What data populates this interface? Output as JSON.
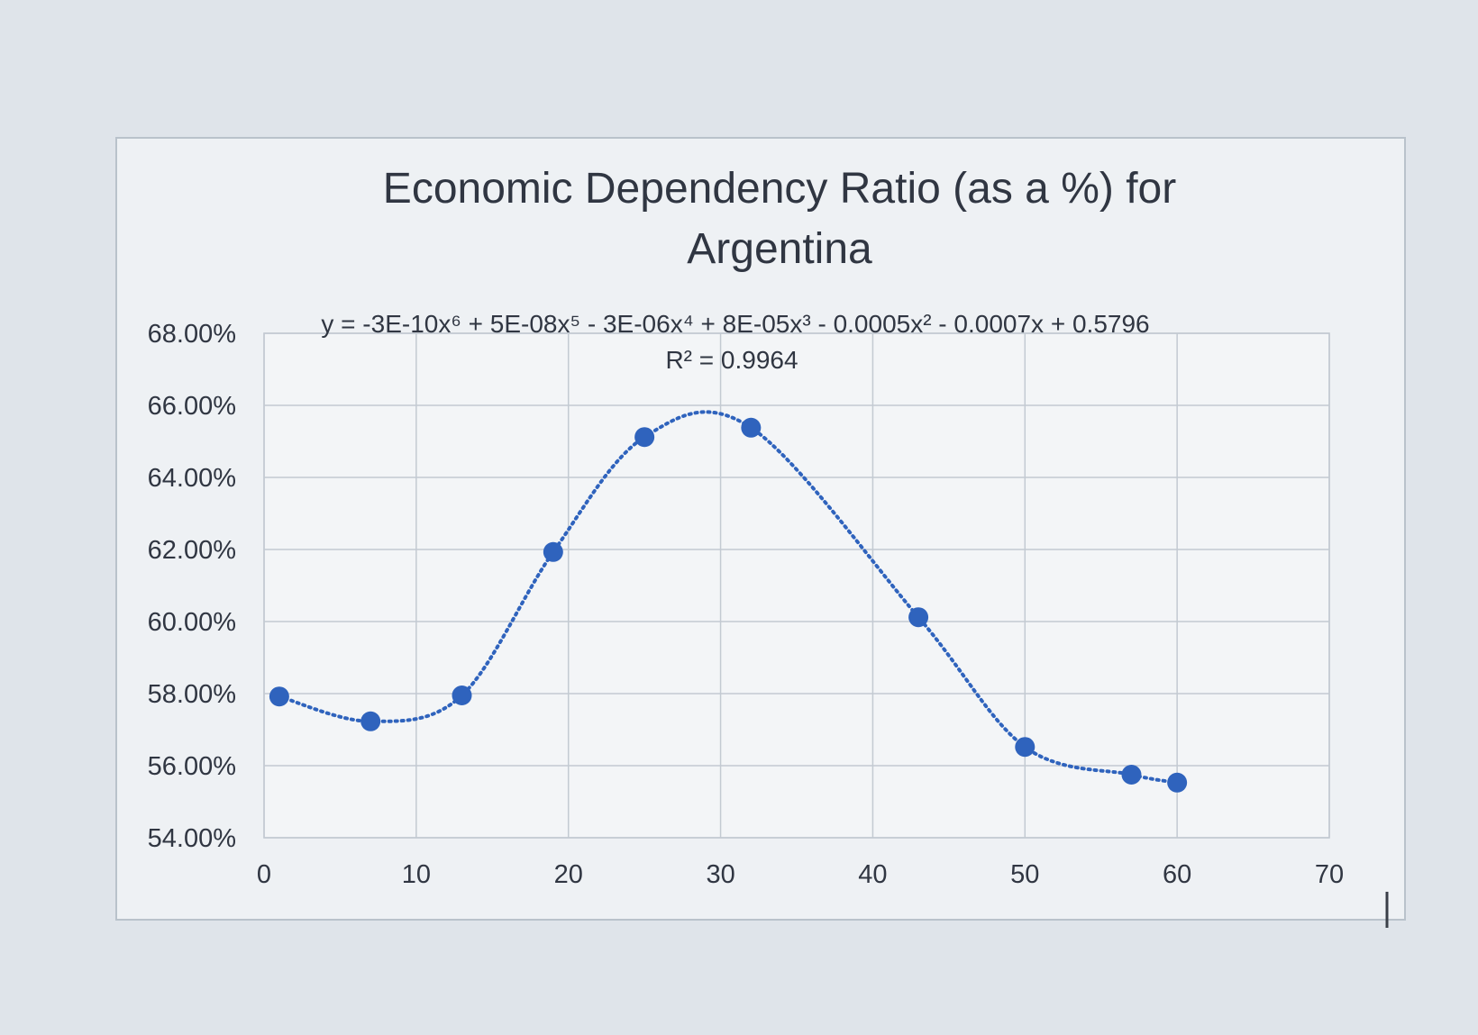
{
  "chart_data": {
    "type": "scatter",
    "title_lines": [
      "Economic Dependency Ratio (as a %) for",
      "Argentina"
    ],
    "y_ticks": [
      "68.00%",
      "66.00%",
      "64.00%",
      "62.00%",
      "60.00%",
      "58.00%",
      "56.00%",
      "54.00%"
    ],
    "x_ticks": [
      "0",
      "10",
      "20",
      "30",
      "40",
      "50",
      "60",
      "70"
    ],
    "xlim": [
      0,
      70
    ],
    "ylim": [
      0.54,
      0.68
    ],
    "grid": true,
    "legend": "none",
    "series": [
      {
        "x": [
          1,
          7,
          13,
          19,
          25,
          32,
          43,
          50,
          57,
          60
        ],
        "y": [
          0.5792,
          0.5723,
          0.5795,
          0.6193,
          0.6512,
          0.6538,
          0.6012,
          0.5652,
          0.5575,
          0.5553
        ],
        "color": "#2f63bd",
        "trendline": {
          "type": "polynomial",
          "order": 6,
          "equation": "y = -3E-10x⁶ + 5E-08x⁵ - 3E-06x⁴ + 8E-05x³ - 0.0005x² - 0.0007x + 0.5796",
          "r_squared_label": "R² = 0.9964"
        }
      }
    ]
  }
}
